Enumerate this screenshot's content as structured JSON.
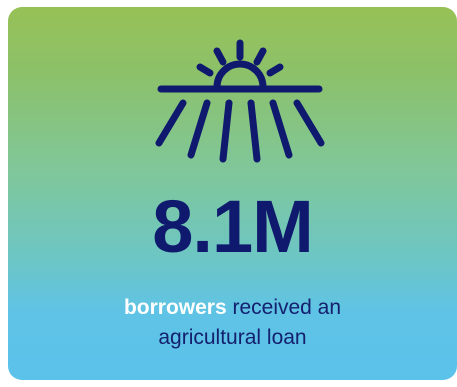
{
  "card": {
    "icon": "sunrise-over-field-icon",
    "stat_value": "8.1M",
    "caption_highlight": "borrowers",
    "caption_line1_rest": " received an",
    "caption_line2": "agricultural loan"
  },
  "colors": {
    "gradient_top": "#97c156",
    "gradient_bottom": "#5bc2ea",
    "stat_text": "#0f1a6e",
    "highlight_text": "#ffffff"
  }
}
